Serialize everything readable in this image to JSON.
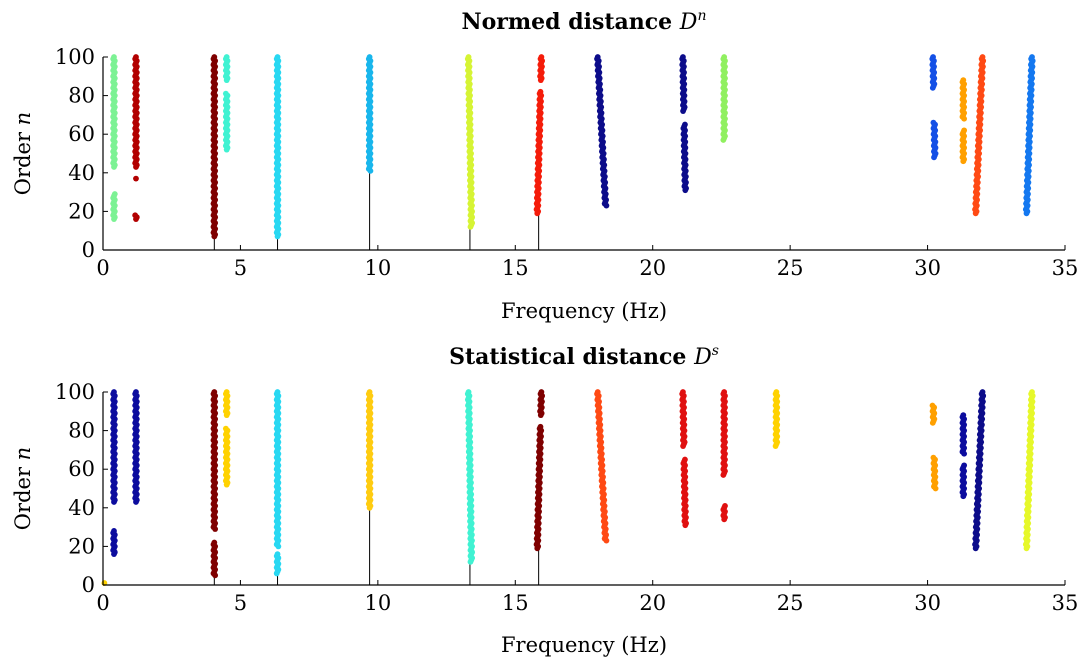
{
  "chart_data": [
    {
      "type": "scatter",
      "title": "Normed distance",
      "title_symbol": "D",
      "title_superscript": "n",
      "xlabel": "Frequency (Hz)",
      "ylabel": "Order",
      "ylabel_symbol": "n",
      "xlim": [
        0,
        35
      ],
      "ylim": [
        0,
        100
      ],
      "xticks": [
        0,
        5,
        10,
        15,
        20,
        25,
        30,
        35
      ],
      "yticks": [
        0,
        20,
        40,
        60,
        80,
        100
      ],
      "grid": false,
      "stems": [
        {
          "x": 4.05,
          "top": 8
        },
        {
          "x": 6.35,
          "top": 8
        },
        {
          "x": 9.7,
          "top": 41
        },
        {
          "x": 13.35,
          "top": 12
        },
        {
          "x": 15.85,
          "top": 19
        }
      ],
      "clusters": [
        {
          "color": "#7cf294",
          "x": 0.4,
          "segments": [
            [
              16,
              29
            ],
            [
              43,
              100
            ]
          ]
        },
        {
          "color": "#b20000",
          "x": 1.2,
          "segments": [
            [
              16,
              18
            ],
            [
              37,
              37
            ],
            [
              43,
              100
            ]
          ]
        },
        {
          "color": "#7f0000",
          "x": 4.05,
          "segments": [
            [
              7,
              100
            ]
          ]
        },
        {
          "color": "#40f2d2",
          "x": 4.5,
          "segments": [
            [
              52,
              81
            ],
            [
              88,
              100
            ]
          ]
        },
        {
          "color": "#28d8f2",
          "x": 6.35,
          "segments": [
            [
              7,
              100
            ]
          ]
        },
        {
          "color": "#18b6ec",
          "x": 9.7,
          "segments": [
            [
              41,
              100
            ]
          ]
        },
        {
          "color": "#d6f434",
          "x": 13.4,
          "x_end": 13.3,
          "segments": [
            [
              12,
              100
            ]
          ]
        },
        {
          "color": "#f51c0a",
          "x": 15.8,
          "x_end": 15.95,
          "segments": [
            [
              19,
              82
            ],
            [
              88,
              100
            ]
          ]
        },
        {
          "color": "#0c0c8a",
          "x": 18.3,
          "x_end": 18.0,
          "segments": [
            [
              23,
              100
            ]
          ]
        },
        {
          "color": "#0c0c8a",
          "x": 21.2,
          "x_end": 21.1,
          "segments": [
            [
              31,
              65
            ],
            [
              72,
              100
            ]
          ]
        },
        {
          "color": "#90f060",
          "x": 22.6,
          "segments": [
            [
              57,
              100
            ]
          ]
        },
        {
          "color": "#1450e6",
          "x": 30.3,
          "x_end": 30.2,
          "segments": [
            [
              48,
              66
            ],
            [
              84,
              100
            ]
          ]
        },
        {
          "color": "#ffa000",
          "x": 31.3,
          "segments": [
            [
              46,
              62
            ],
            [
              68,
              88
            ]
          ]
        },
        {
          "color": "#ff4a14",
          "x": 31.75,
          "x_end": 32.0,
          "segments": [
            [
              19,
              100
            ]
          ]
        },
        {
          "color": "#1478f0",
          "x": 33.6,
          "x_end": 33.8,
          "segments": [
            [
              19,
              100
            ]
          ]
        }
      ]
    },
    {
      "type": "scatter",
      "title": "Statistical distance",
      "title_symbol": "D",
      "title_superscript": "s",
      "xlabel": "Frequency (Hz)",
      "ylabel": "Order",
      "ylabel_symbol": "n",
      "xlim": [
        0,
        35
      ],
      "ylim": [
        0,
        100
      ],
      "xticks": [
        0,
        5,
        10,
        15,
        20,
        25,
        30,
        35
      ],
      "yticks": [
        0,
        20,
        40,
        60,
        80,
        100
      ],
      "grid": false,
      "stems": [
        {
          "x": 4.05,
          "top": 5
        },
        {
          "x": 6.35,
          "top": 6
        },
        {
          "x": 9.7,
          "top": 40
        },
        {
          "x": 13.35,
          "top": 12
        },
        {
          "x": 15.85,
          "top": 19
        }
      ],
      "clusters": [
        {
          "color": "#ffd200",
          "x": 0.05,
          "segments": [
            [
              1,
              1
            ]
          ]
        },
        {
          "color": "#0c0c9e",
          "x": 0.4,
          "segments": [
            [
              16,
              28
            ],
            [
              43,
              100
            ]
          ]
        },
        {
          "color": "#0c0c9e",
          "x": 1.2,
          "segments": [
            [
              43,
              100
            ]
          ]
        },
        {
          "color": "#7f0000",
          "x": 4.05,
          "segments": [
            [
              5,
              22
            ],
            [
              29,
              100
            ]
          ]
        },
        {
          "color": "#ffd200",
          "x": 4.5,
          "segments": [
            [
              52,
              81
            ],
            [
              88,
              100
            ]
          ]
        },
        {
          "color": "#28d8f2",
          "x": 6.35,
          "segments": [
            [
              6,
              16
            ],
            [
              20,
              100
            ]
          ]
        },
        {
          "color": "#ffcc10",
          "x": 9.7,
          "segments": [
            [
              40,
              100
            ]
          ]
        },
        {
          "color": "#40f2d2",
          "x": 13.4,
          "x_end": 13.3,
          "segments": [
            [
              12,
              100
            ]
          ]
        },
        {
          "color": "#7f0000",
          "x": 15.8,
          "x_end": 15.95,
          "segments": [
            [
              19,
              82
            ],
            [
              88,
              100
            ]
          ]
        },
        {
          "color": "#ff4a14",
          "x": 18.3,
          "x_end": 18.0,
          "segments": [
            [
              23,
              100
            ]
          ]
        },
        {
          "color": "#e01010",
          "x": 21.2,
          "x_end": 21.1,
          "segments": [
            [
              31,
              65
            ],
            [
              72,
              100
            ]
          ]
        },
        {
          "color": "#e01010",
          "x": 22.6,
          "segments": [
            [
              34,
              41
            ],
            [
              57,
              100
            ]
          ]
        },
        {
          "color": "#ffd200",
          "x": 24.5,
          "segments": [
            [
              72,
              100
            ]
          ]
        },
        {
          "color": "#ffa000",
          "x": 30.3,
          "x_end": 30.2,
          "segments": [
            [
              50,
              66
            ],
            [
              84,
              93
            ]
          ]
        },
        {
          "color": "#0c0c9e",
          "x": 31.3,
          "segments": [
            [
              46,
              62
            ],
            [
              68,
              88
            ]
          ]
        },
        {
          "color": "#0c0c8a",
          "x": 31.75,
          "x_end": 32.0,
          "segments": [
            [
              19,
              100
            ]
          ]
        },
        {
          "color": "#e6f82a",
          "x": 33.6,
          "x_end": 33.8,
          "segments": [
            [
              19,
              100
            ]
          ]
        }
      ]
    }
  ]
}
